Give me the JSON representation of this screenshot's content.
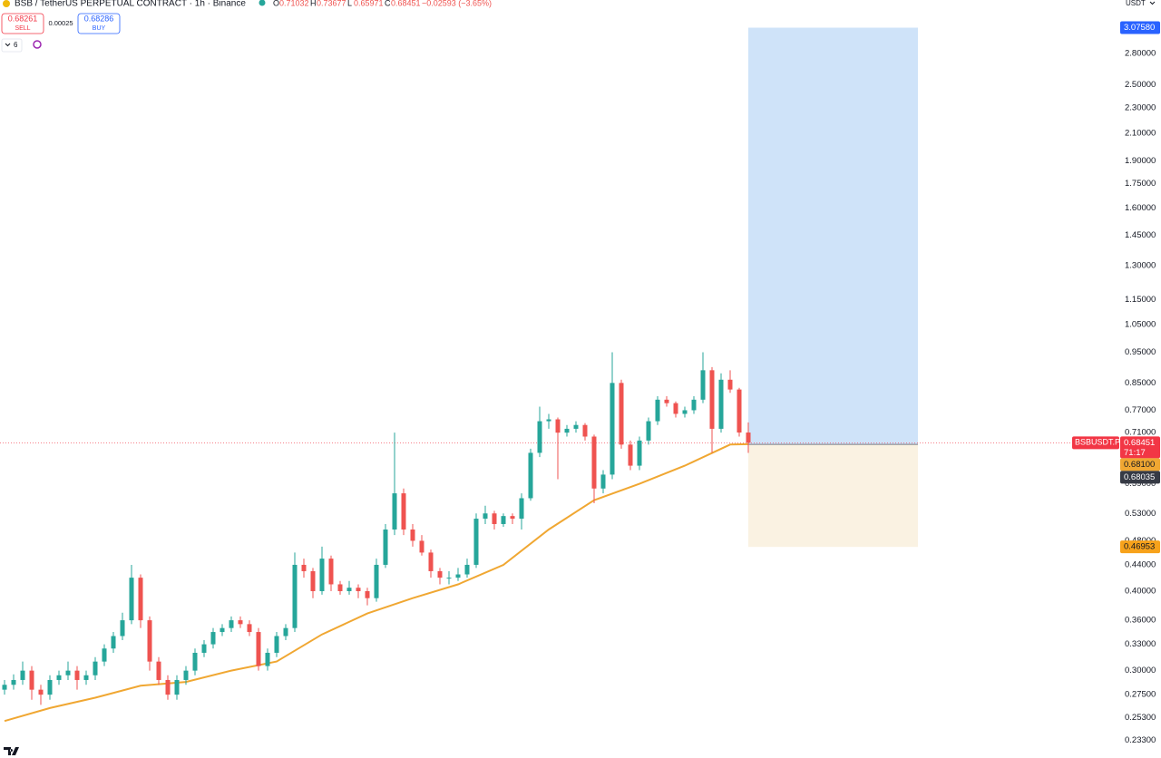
{
  "header": {
    "symbol": "BSB / TetherUS PERPETUAL CONTRACT · 1h · Binance",
    "ohlc_letters": [
      "O",
      "H",
      "L",
      "C"
    ],
    "change": "−0.02593 (−3.65%)"
  },
  "trade_panel": {
    "sell_price": "0.68261",
    "sell_label": "SELL",
    "spread": "0.00025",
    "buy_price": "0.68286",
    "buy_label": "BUY"
  },
  "indicators_count": "6",
  "currency": "USDT",
  "chart_data": {
    "type": "candlestick",
    "log_scale": true,
    "up_color": "#26a69a",
    "down_color": "#ef5350",
    "xlim": [
      -0.5,
      117.5
    ],
    "ylim": [
      0.223,
      3.4
    ],
    "yticks": [
      {
        "value": 2.8,
        "label": "2.80000"
      },
      {
        "value": 2.5,
        "label": "2.50000"
      },
      {
        "value": 2.3,
        "label": "2.30000"
      },
      {
        "value": 2.1,
        "label": "2.10000"
      },
      {
        "value": 1.9,
        "label": "1.90000"
      },
      {
        "value": 1.75,
        "label": "1.75000"
      },
      {
        "value": 1.6,
        "label": "1.60000"
      },
      {
        "value": 1.45,
        "label": "1.45000"
      },
      {
        "value": 1.3,
        "label": "1.30000"
      },
      {
        "value": 1.15,
        "label": "1.15000"
      },
      {
        "value": 1.05,
        "label": "1.05000"
      },
      {
        "value": 0.95,
        "label": "0.95000"
      },
      {
        "value": 0.85,
        "label": "0.85000"
      },
      {
        "value": 0.77,
        "label": "0.77000"
      },
      {
        "value": 0.71,
        "label": "0.71000"
      },
      {
        "value": 0.59,
        "label": "0.59000"
      },
      {
        "value": 0.53,
        "label": "0.53000"
      },
      {
        "value": 0.48,
        "label": "0.48000"
      },
      {
        "value": 0.44,
        "label": "0.44000"
      },
      {
        "value": 0.4,
        "label": "0.40000"
      },
      {
        "value": 0.36,
        "label": "0.36000"
      },
      {
        "value": 0.33,
        "label": "0.33000"
      },
      {
        "value": 0.3,
        "label": "0.30000"
      },
      {
        "value": 0.275,
        "label": "0.27500"
      },
      {
        "value": 0.253,
        "label": "0.25300"
      },
      {
        "value": 0.233,
        "label": "0.23300"
      }
    ],
    "candles": [
      [
        0.28,
        0.29,
        0.275,
        0.285
      ],
      [
        0.285,
        0.296,
        0.28,
        0.29
      ],
      [
        0.29,
        0.31,
        0.285,
        0.3
      ],
      [
        0.3,
        0.305,
        0.27,
        0.28
      ],
      [
        0.28,
        0.285,
        0.265,
        0.275
      ],
      [
        0.275,
        0.295,
        0.27,
        0.29
      ],
      [
        0.29,
        0.3,
        0.285,
        0.295
      ],
      [
        0.295,
        0.31,
        0.29,
        0.3
      ],
      [
        0.3,
        0.305,
        0.28,
        0.29
      ],
      [
        0.29,
        0.3,
        0.285,
        0.295
      ],
      [
        0.295,
        0.315,
        0.29,
        0.31
      ],
      [
        0.31,
        0.33,
        0.305,
        0.325
      ],
      [
        0.325,
        0.345,
        0.32,
        0.34
      ],
      [
        0.34,
        0.37,
        0.335,
        0.36
      ],
      [
        0.36,
        0.44,
        0.355,
        0.42
      ],
      [
        0.42,
        0.425,
        0.35,
        0.36
      ],
      [
        0.36,
        0.365,
        0.3,
        0.31
      ],
      [
        0.31,
        0.315,
        0.285,
        0.29
      ],
      [
        0.29,
        0.295,
        0.27,
        0.275
      ],
      [
        0.275,
        0.295,
        0.27,
        0.29
      ],
      [
        0.29,
        0.305,
        0.285,
        0.3
      ],
      [
        0.3,
        0.325,
        0.295,
        0.32
      ],
      [
        0.32,
        0.335,
        0.315,
        0.33
      ],
      [
        0.33,
        0.35,
        0.325,
        0.345
      ],
      [
        0.345,
        0.355,
        0.34,
        0.35
      ],
      [
        0.35,
        0.365,
        0.345,
        0.36
      ],
      [
        0.36,
        0.365,
        0.35,
        0.355
      ],
      [
        0.355,
        0.36,
        0.34,
        0.345
      ],
      [
        0.345,
        0.35,
        0.3,
        0.305
      ],
      [
        0.305,
        0.325,
        0.3,
        0.32
      ],
      [
        0.32,
        0.345,
        0.315,
        0.34
      ],
      [
        0.34,
        0.355,
        0.335,
        0.35
      ],
      [
        0.35,
        0.46,
        0.345,
        0.44
      ],
      [
        0.44,
        0.45,
        0.42,
        0.43
      ],
      [
        0.43,
        0.435,
        0.39,
        0.4
      ],
      [
        0.4,
        0.47,
        0.395,
        0.45
      ],
      [
        0.45,
        0.455,
        0.4,
        0.41
      ],
      [
        0.41,
        0.415,
        0.395,
        0.4
      ],
      [
        0.4,
        0.415,
        0.395,
        0.405
      ],
      [
        0.405,
        0.41,
        0.39,
        0.4
      ],
      [
        0.4,
        0.405,
        0.38,
        0.39
      ],
      [
        0.39,
        0.45,
        0.385,
        0.44
      ],
      [
        0.44,
        0.51,
        0.435,
        0.5
      ],
      [
        0.5,
        0.71,
        0.49,
        0.57
      ],
      [
        0.57,
        0.58,
        0.49,
        0.5
      ],
      [
        0.5,
        0.51,
        0.47,
        0.48
      ],
      [
        0.48,
        0.49,
        0.455,
        0.46
      ],
      [
        0.46,
        0.465,
        0.42,
        0.43
      ],
      [
        0.43,
        0.435,
        0.41,
        0.42
      ],
      [
        0.42,
        0.43,
        0.41,
        0.42
      ],
      [
        0.42,
        0.435,
        0.415,
        0.425
      ],
      [
        0.425,
        0.45,
        0.42,
        0.44
      ],
      [
        0.44,
        0.53,
        0.435,
        0.52
      ],
      [
        0.52,
        0.545,
        0.51,
        0.53
      ],
      [
        0.53,
        0.535,
        0.5,
        0.51
      ],
      [
        0.51,
        0.53,
        0.505,
        0.525
      ],
      [
        0.525,
        0.53,
        0.51,
        0.52
      ],
      [
        0.52,
        0.57,
        0.5,
        0.56
      ],
      [
        0.56,
        0.67,
        0.555,
        0.66
      ],
      [
        0.66,
        0.78,
        0.65,
        0.74
      ],
      [
        0.74,
        0.76,
        0.72,
        0.745
      ],
      [
        0.745,
        0.75,
        0.6,
        0.71
      ],
      [
        0.71,
        0.73,
        0.7,
        0.72
      ],
      [
        0.72,
        0.74,
        0.71,
        0.73
      ],
      [
        0.73,
        0.735,
        0.69,
        0.7
      ],
      [
        0.7,
        0.705,
        0.55,
        0.58
      ],
      [
        0.58,
        0.62,
        0.57,
        0.61
      ],
      [
        0.61,
        0.95,
        0.6,
        0.85
      ],
      [
        0.85,
        0.86,
        0.67,
        0.68
      ],
      [
        0.68,
        0.69,
        0.62,
        0.63
      ],
      [
        0.63,
        0.7,
        0.62,
        0.69
      ],
      [
        0.69,
        0.75,
        0.68,
        0.74
      ],
      [
        0.74,
        0.81,
        0.73,
        0.8
      ],
      [
        0.8,
        0.81,
        0.78,
        0.79
      ],
      [
        0.79,
        0.795,
        0.75,
        0.76
      ],
      [
        0.76,
        0.78,
        0.75,
        0.77
      ],
      [
        0.77,
        0.81,
        0.76,
        0.8
      ],
      [
        0.8,
        0.95,
        0.79,
        0.89
      ],
      [
        0.89,
        0.9,
        0.66,
        0.72
      ],
      [
        0.72,
        0.88,
        0.71,
        0.86
      ],
      [
        0.86,
        0.89,
        0.82,
        0.83
      ],
      [
        0.83,
        0.835,
        0.7,
        0.71032
      ],
      [
        0.71032,
        0.73677,
        0.65971,
        0.68451
      ]
    ],
    "ema": {
      "color": "#f0a732",
      "x": [
        0,
        5,
        10,
        15,
        20,
        25,
        30,
        35,
        40,
        45,
        50,
        55,
        60,
        65,
        70,
        75,
        80,
        82
      ],
      "values": [
        0.25,
        0.262,
        0.272,
        0.284,
        0.288,
        0.3,
        0.31,
        0.342,
        0.369,
        0.39,
        0.41,
        0.44,
        0.5,
        0.556,
        0.59,
        0.63,
        0.68,
        0.681
      ],
      "last_label": {
        "value": 0.681,
        "label": "0.68100"
      }
    },
    "position": {
      "start": 82,
      "end": 100.7,
      "entry": {
        "value": 0.68035,
        "label": "0.68035"
      },
      "target": {
        "value": 3.0758,
        "label": "3.07580"
      },
      "stop": {
        "value": 0.46953,
        "label": "0.46953"
      },
      "target_color": "#cfe3f9",
      "stop_color": "#faf2e2",
      "target_badge_color": "#2962ff",
      "stop_badge_color": "#f7a21b",
      "entry_badge_color": "#363a45"
    },
    "price_label": {
      "symbol": "BSBUSDT.P",
      "countdown": "71:17",
      "color": "#f23645"
    }
  }
}
